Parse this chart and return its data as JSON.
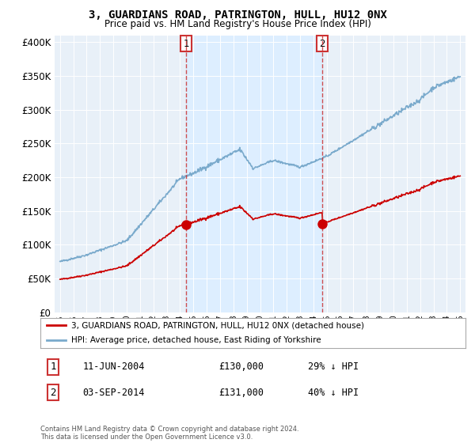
{
  "title": "3, GUARDIANS ROAD, PATRINGTON, HULL, HU12 0NX",
  "subtitle": "Price paid vs. HM Land Registry's House Price Index (HPI)",
  "legend_line1": "3, GUARDIANS ROAD, PATRINGTON, HULL, HU12 0NX (detached house)",
  "legend_line2": "HPI: Average price, detached house, East Riding of Yorkshire",
  "annotation1_label": "1",
  "annotation1_date": "11-JUN-2004",
  "annotation1_price": "£130,000",
  "annotation1_hpi": "29% ↓ HPI",
  "annotation2_label": "2",
  "annotation2_date": "03-SEP-2014",
  "annotation2_price": "£131,000",
  "annotation2_hpi": "40% ↓ HPI",
  "copyright": "Contains HM Land Registry data © Crown copyright and database right 2024.\nThis data is licensed under the Open Government Licence v3.0.",
  "line_color_red": "#cc0000",
  "line_color_blue": "#7aaacc",
  "shade_color": "#ddeeff",
  "plot_bg_color": "#e8f0f8",
  "vline_color": "#cc3333",
  "annotation_box_color": "#cc3333",
  "ylim": [
    0,
    410000
  ],
  "yticks": [
    0,
    50000,
    100000,
    150000,
    200000,
    250000,
    300000,
    350000,
    400000
  ],
  "sale1_year_float": 2004.46,
  "sale2_year_float": 2014.67,
  "price1": 130000,
  "price2": 131000
}
